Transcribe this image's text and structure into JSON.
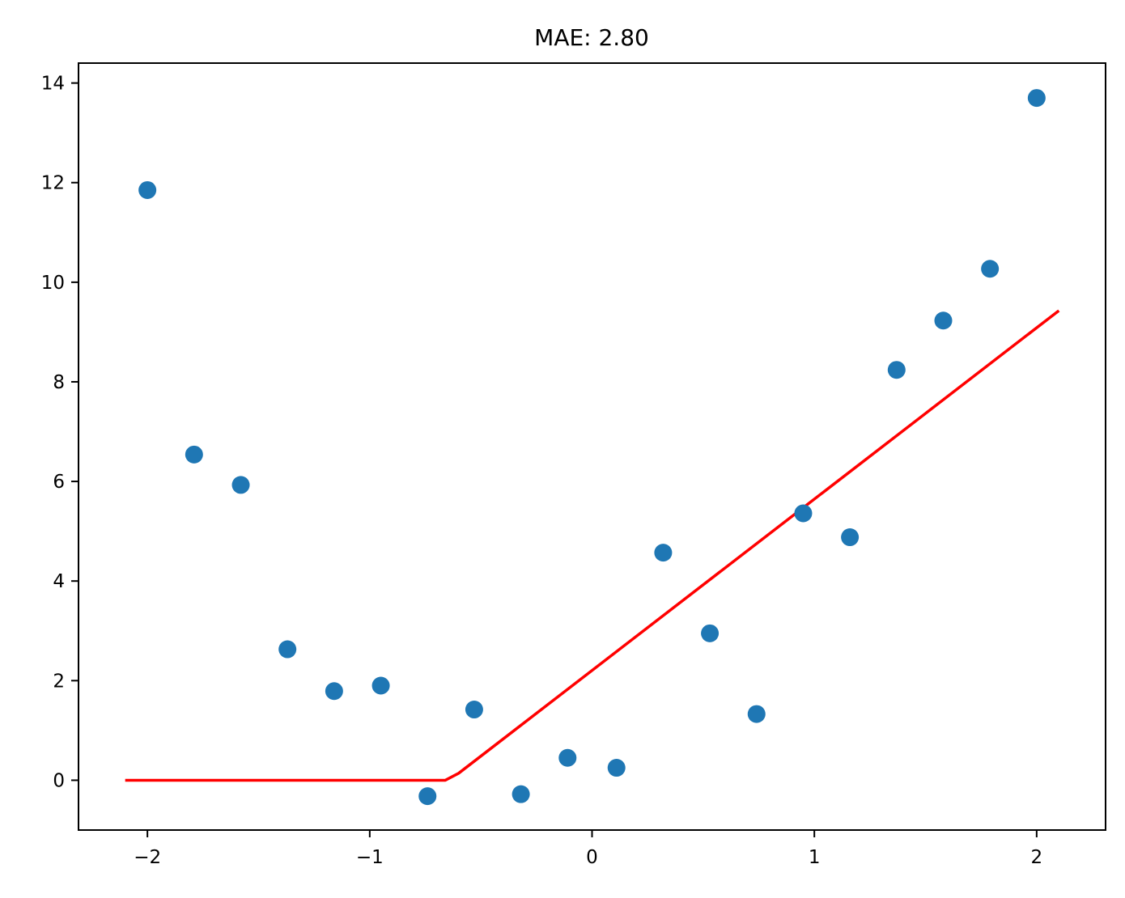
{
  "chart_data": {
    "type": "scatter",
    "title": "MAE: 2.80",
    "xlabel": "",
    "ylabel": "",
    "xlim": [
      -2.31,
      2.31
    ],
    "ylim": [
      -1.0,
      14.4
    ],
    "xticks": [
      -2,
      -1,
      0,
      1,
      2
    ],
    "xtick_labels": [
      "−2",
      "−1",
      "0",
      "1",
      "2"
    ],
    "yticks": [
      0,
      2,
      4,
      6,
      8,
      10,
      12,
      14
    ],
    "ytick_labels": [
      "0",
      "2",
      "4",
      "6",
      "8",
      "10",
      "12",
      "14"
    ],
    "grid": false,
    "series": [
      {
        "kind": "scatter",
        "color": "#1f77b4",
        "x": [
          -2.0,
          -1.79,
          -1.58,
          -1.37,
          -1.16,
          -0.95,
          -0.74,
          -0.53,
          -0.32,
          -0.11,
          0.11,
          0.32,
          0.53,
          0.74,
          0.95,
          1.16,
          1.37,
          1.58,
          1.79,
          2.0
        ],
        "y": [
          11.85,
          6.54,
          5.93,
          2.63,
          1.79,
          1.9,
          -0.32,
          1.42,
          -0.28,
          0.45,
          0.25,
          4.57,
          2.95,
          1.33,
          5.36,
          4.88,
          8.24,
          9.23,
          10.27,
          13.7
        ]
      },
      {
        "kind": "line",
        "color": "#ff0000",
        "x": [
          -2.1,
          -0.66,
          -0.6,
          2.1
        ],
        "y": [
          0.0,
          0.0,
          0.14,
          9.43
        ]
      }
    ]
  }
}
